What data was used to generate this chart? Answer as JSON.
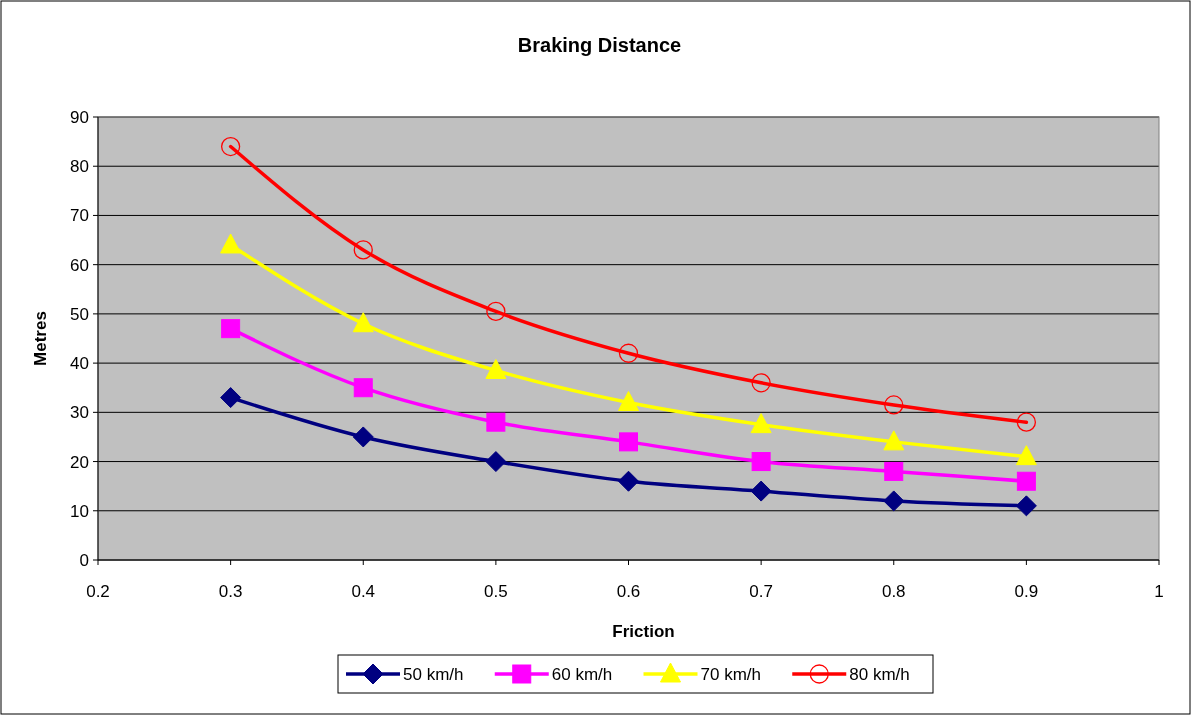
{
  "chart_data": {
    "type": "line",
    "title": "Braking Distance",
    "xlabel": "Friction",
    "ylabel": "Metres",
    "x": [
      0.3,
      0.4,
      0.5,
      0.6,
      0.7,
      0.8,
      0.9
    ],
    "series": [
      {
        "name": "50 km/h",
        "color": "#000080",
        "marker": "diamond",
        "values": [
          33,
          25,
          20,
          16,
          14,
          12,
          11
        ]
      },
      {
        "name": "60 km/h",
        "color": "#ff00ff",
        "marker": "square",
        "values": [
          47,
          35,
          28,
          24,
          20,
          18,
          16
        ]
      },
      {
        "name": "70 km/h",
        "color": "#ffff00",
        "marker": "triangle",
        "values": [
          64,
          48,
          38.5,
          32,
          27.5,
          24,
          21
        ]
      },
      {
        "name": "80 km/h",
        "color": "#ff0000",
        "marker": "circle",
        "values": [
          84,
          63,
          50.5,
          42,
          36,
          31.5,
          28
        ]
      }
    ],
    "xlim": [
      0.2,
      1
    ],
    "xticks": [
      0.2,
      0.3,
      0.4,
      0.5,
      0.6,
      0.7,
      0.8,
      0.9,
      1
    ],
    "ylim": [
      0,
      90
    ],
    "yticks": [
      0,
      10,
      20,
      30,
      40,
      50,
      60,
      70,
      80,
      90
    ],
    "grid": "y",
    "legend": "bottom",
    "line_style": "solid"
  }
}
